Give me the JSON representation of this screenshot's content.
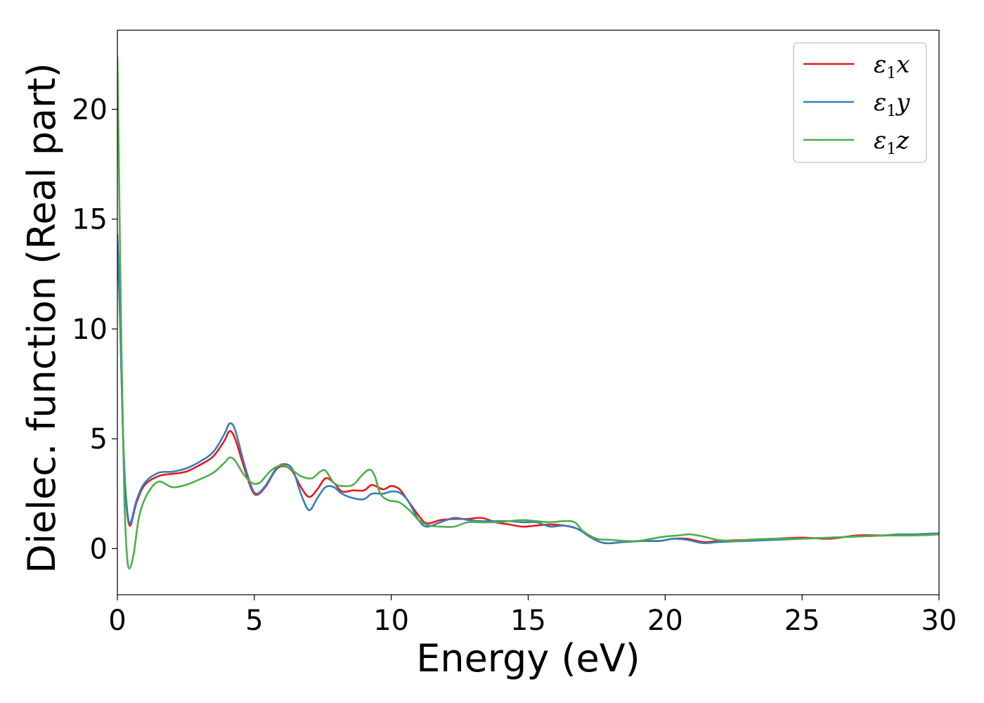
{
  "chart_data": {
    "type": "line",
    "title": "",
    "xlabel": "Energy (eV)",
    "ylabel": "Dielec. function (Real part)",
    "xlim": [
      0,
      30
    ],
    "ylim": [
      -2.1,
      23.6
    ],
    "xticks": [
      0,
      5,
      10,
      15,
      20,
      25,
      30
    ],
    "yticks": [
      0,
      5,
      10,
      15,
      20
    ],
    "grid": false,
    "legend_position": "top-right",
    "series": [
      {
        "name_symbol": "ε",
        "name_sub": "1",
        "name_var": "x",
        "color": "#e41a1c",
        "points": [
          [
            0.0,
            14.3
          ],
          [
            0.1,
            10.5
          ],
          [
            0.2,
            5.5
          ],
          [
            0.3,
            2.5
          ],
          [
            0.45,
            1.05
          ],
          [
            0.7,
            2.1
          ],
          [
            1.0,
            2.9
          ],
          [
            1.5,
            3.3
          ],
          [
            2.0,
            3.4
          ],
          [
            2.5,
            3.5
          ],
          [
            3.0,
            3.8
          ],
          [
            3.5,
            4.2
          ],
          [
            3.9,
            4.9
          ],
          [
            4.1,
            5.35
          ],
          [
            4.3,
            5.0
          ],
          [
            4.6,
            3.8
          ],
          [
            4.9,
            2.7
          ],
          [
            5.1,
            2.45
          ],
          [
            5.4,
            2.8
          ],
          [
            5.8,
            3.6
          ],
          [
            6.1,
            3.75
          ],
          [
            6.4,
            3.5
          ],
          [
            6.7,
            2.8
          ],
          [
            7.0,
            2.35
          ],
          [
            7.3,
            2.7
          ],
          [
            7.6,
            3.2
          ],
          [
            7.9,
            3.0
          ],
          [
            8.2,
            2.6
          ],
          [
            8.6,
            2.65
          ],
          [
            9.0,
            2.65
          ],
          [
            9.3,
            2.9
          ],
          [
            9.7,
            2.7
          ],
          [
            10.0,
            2.85
          ],
          [
            10.3,
            2.7
          ],
          [
            10.6,
            2.2
          ],
          [
            11.0,
            1.5
          ],
          [
            11.3,
            1.15
          ],
          [
            11.8,
            1.3
          ],
          [
            12.3,
            1.35
          ],
          [
            12.8,
            1.35
          ],
          [
            13.3,
            1.4
          ],
          [
            13.8,
            1.2
          ],
          [
            14.3,
            1.1
          ],
          [
            14.8,
            1.0
          ],
          [
            15.3,
            1.05
          ],
          [
            15.8,
            1.1
          ],
          [
            16.3,
            1.05
          ],
          [
            16.8,
            0.9
          ],
          [
            17.3,
            0.5
          ],
          [
            17.8,
            0.25
          ],
          [
            18.5,
            0.3
          ],
          [
            19.2,
            0.35
          ],
          [
            19.8,
            0.35
          ],
          [
            20.3,
            0.45
          ],
          [
            20.8,
            0.45
          ],
          [
            21.4,
            0.3
          ],
          [
            22.0,
            0.35
          ],
          [
            23.0,
            0.4
          ],
          [
            24.0,
            0.45
          ],
          [
            25.0,
            0.5
          ],
          [
            26.0,
            0.45
          ],
          [
            27.0,
            0.6
          ],
          [
            28.0,
            0.6
          ],
          [
            29.0,
            0.6
          ],
          [
            30.0,
            0.65
          ]
        ]
      },
      {
        "name_symbol": "ε",
        "name_sub": "1",
        "name_var": "y",
        "color": "#377eb8",
        "points": [
          [
            0.0,
            14.2
          ],
          [
            0.1,
            10.3
          ],
          [
            0.2,
            5.4
          ],
          [
            0.3,
            2.6
          ],
          [
            0.45,
            1.15
          ],
          [
            0.7,
            2.2
          ],
          [
            1.0,
            3.0
          ],
          [
            1.5,
            3.45
          ],
          [
            2.0,
            3.5
          ],
          [
            2.5,
            3.65
          ],
          [
            3.0,
            3.95
          ],
          [
            3.5,
            4.4
          ],
          [
            3.9,
            5.2
          ],
          [
            4.1,
            5.7
          ],
          [
            4.3,
            5.4
          ],
          [
            4.6,
            4.0
          ],
          [
            4.9,
            2.8
          ],
          [
            5.1,
            2.5
          ],
          [
            5.4,
            2.85
          ],
          [
            5.8,
            3.65
          ],
          [
            6.1,
            3.85
          ],
          [
            6.4,
            3.6
          ],
          [
            6.7,
            2.5
          ],
          [
            7.0,
            1.75
          ],
          [
            7.3,
            2.3
          ],
          [
            7.6,
            2.8
          ],
          [
            7.9,
            2.8
          ],
          [
            8.2,
            2.5
          ],
          [
            8.6,
            2.3
          ],
          [
            9.0,
            2.25
          ],
          [
            9.3,
            2.5
          ],
          [
            9.7,
            2.5
          ],
          [
            10.0,
            2.6
          ],
          [
            10.3,
            2.55
          ],
          [
            10.6,
            2.2
          ],
          [
            11.0,
            1.3
          ],
          [
            11.3,
            1.0
          ],
          [
            11.8,
            1.2
          ],
          [
            12.3,
            1.4
          ],
          [
            12.8,
            1.3
          ],
          [
            13.3,
            1.25
          ],
          [
            13.8,
            1.25
          ],
          [
            14.3,
            1.25
          ],
          [
            14.8,
            1.2
          ],
          [
            15.3,
            1.2
          ],
          [
            15.8,
            1.0
          ],
          [
            16.3,
            1.05
          ],
          [
            16.8,
            0.9
          ],
          [
            17.3,
            0.5
          ],
          [
            17.8,
            0.25
          ],
          [
            18.5,
            0.3
          ],
          [
            19.2,
            0.35
          ],
          [
            19.8,
            0.35
          ],
          [
            20.3,
            0.45
          ],
          [
            20.8,
            0.4
          ],
          [
            21.4,
            0.25
          ],
          [
            22.0,
            0.3
          ],
          [
            23.0,
            0.35
          ],
          [
            24.0,
            0.4
          ],
          [
            25.0,
            0.45
          ],
          [
            26.0,
            0.5
          ],
          [
            27.0,
            0.55
          ],
          [
            28.0,
            0.6
          ],
          [
            28.5,
            0.65
          ],
          [
            29.0,
            0.65
          ],
          [
            30.0,
            0.7
          ]
        ]
      },
      {
        "name_symbol": "ε",
        "name_sub": "1",
        "name_var": "z",
        "color": "#4daf4a",
        "points": [
          [
            0.0,
            22.4
          ],
          [
            0.05,
            18.0
          ],
          [
            0.15,
            9.0
          ],
          [
            0.25,
            2.5
          ],
          [
            0.35,
            -0.3
          ],
          [
            0.45,
            -0.9
          ],
          [
            0.6,
            -0.2
          ],
          [
            0.8,
            1.5
          ],
          [
            1.1,
            2.5
          ],
          [
            1.5,
            3.05
          ],
          [
            2.0,
            2.8
          ],
          [
            2.5,
            2.9
          ],
          [
            3.0,
            3.15
          ],
          [
            3.5,
            3.45
          ],
          [
            3.9,
            3.9
          ],
          [
            4.1,
            4.15
          ],
          [
            4.3,
            4.0
          ],
          [
            4.6,
            3.4
          ],
          [
            4.9,
            3.0
          ],
          [
            5.2,
            3.0
          ],
          [
            5.6,
            3.55
          ],
          [
            6.0,
            3.8
          ],
          [
            6.3,
            3.65
          ],
          [
            6.7,
            3.3
          ],
          [
            7.1,
            3.2
          ],
          [
            7.4,
            3.5
          ],
          [
            7.6,
            3.55
          ],
          [
            7.9,
            3.0
          ],
          [
            8.2,
            2.85
          ],
          [
            8.6,
            2.9
          ],
          [
            8.9,
            3.3
          ],
          [
            9.2,
            3.6
          ],
          [
            9.4,
            3.3
          ],
          [
            9.6,
            2.5
          ],
          [
            9.9,
            2.2
          ],
          [
            10.3,
            2.1
          ],
          [
            10.7,
            1.7
          ],
          [
            11.0,
            1.3
          ],
          [
            11.4,
            1.05
          ],
          [
            11.9,
            1.0
          ],
          [
            12.3,
            1.0
          ],
          [
            12.8,
            1.2
          ],
          [
            13.3,
            1.2
          ],
          [
            13.8,
            1.2
          ],
          [
            14.3,
            1.25
          ],
          [
            14.8,
            1.3
          ],
          [
            15.3,
            1.25
          ],
          [
            15.8,
            1.2
          ],
          [
            16.3,
            1.25
          ],
          [
            16.7,
            1.2
          ],
          [
            17.0,
            0.8
          ],
          [
            17.5,
            0.45
          ],
          [
            18.0,
            0.4
          ],
          [
            18.5,
            0.35
          ],
          [
            19.0,
            0.35
          ],
          [
            19.5,
            0.45
          ],
          [
            20.0,
            0.55
          ],
          [
            20.5,
            0.6
          ],
          [
            20.9,
            0.65
          ],
          [
            21.4,
            0.55
          ],
          [
            21.9,
            0.4
          ],
          [
            22.5,
            0.35
          ],
          [
            23.0,
            0.4
          ],
          [
            24.0,
            0.45
          ],
          [
            25.0,
            0.45
          ],
          [
            26.0,
            0.5
          ],
          [
            27.0,
            0.55
          ],
          [
            28.0,
            0.6
          ],
          [
            29.0,
            0.6
          ],
          [
            30.0,
            0.65
          ]
        ]
      }
    ]
  }
}
